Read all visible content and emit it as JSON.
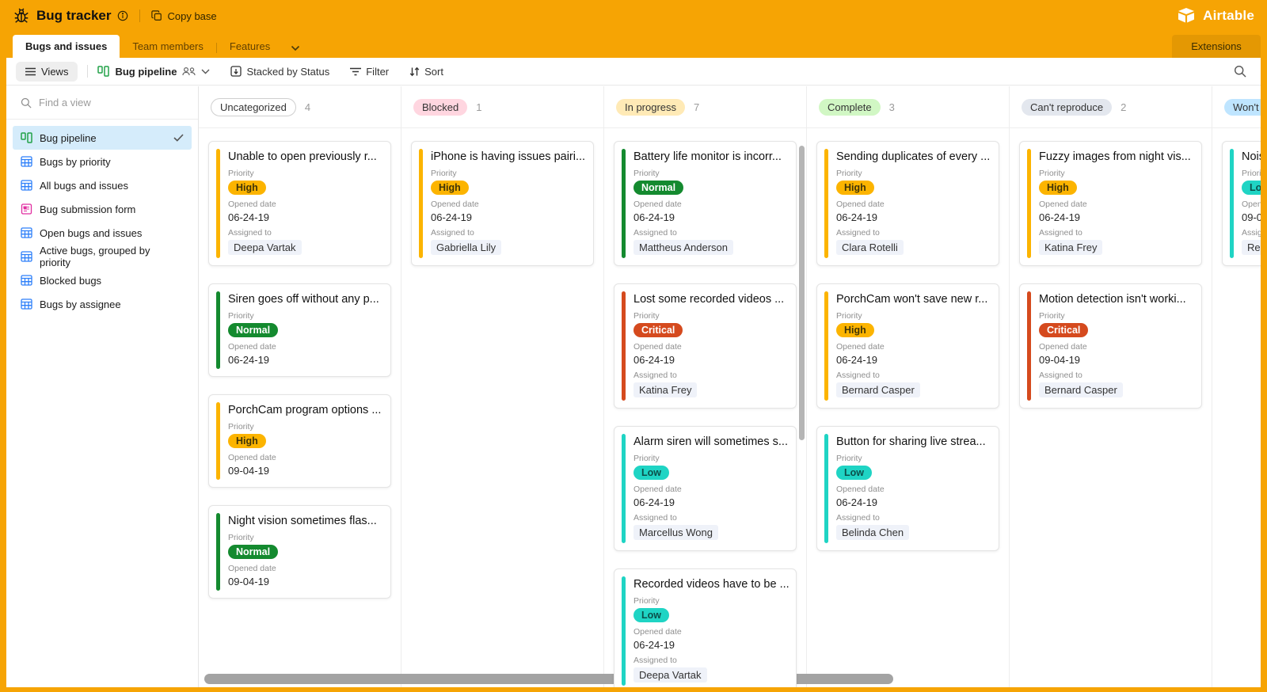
{
  "topbar": {
    "title": "Bug tracker",
    "copy_base_label": "Copy base",
    "brand": "Airtable"
  },
  "tabs": [
    {
      "label": "Bugs and issues",
      "active": true
    },
    {
      "label": "Team members",
      "active": false
    },
    {
      "label": "Features",
      "active": false
    }
  ],
  "extensions_label": "Extensions",
  "toolbar": {
    "views_label": "Views",
    "view_name": "Bug pipeline",
    "stacked_label": "Stacked by Status",
    "filter_label": "Filter",
    "sort_label": "Sort"
  },
  "sidebar": {
    "search_placeholder": "Find a view",
    "items": [
      {
        "label": "Bug pipeline",
        "icon": "kanban-icon",
        "selected": true
      },
      {
        "label": "Bugs by priority",
        "icon": "grid-icon",
        "selected": false
      },
      {
        "label": "All bugs and issues",
        "icon": "grid-icon",
        "selected": false
      },
      {
        "label": "Bug submission form",
        "icon": "form-icon",
        "selected": false
      },
      {
        "label": "Open bugs and issues",
        "icon": "grid-icon",
        "selected": false
      },
      {
        "label": "Active bugs, grouped by priority",
        "icon": "grid-icon",
        "selected": false
      },
      {
        "label": "Blocked bugs",
        "icon": "grid-icon",
        "selected": false
      },
      {
        "label": "Bugs by assignee",
        "icon": "grid-icon",
        "selected": false
      }
    ]
  },
  "labels": {
    "priority": "Priority",
    "opened": "Opened date",
    "assigned": "Assigned to"
  },
  "priorities": {
    "High": {
      "bg": "#fcb400",
      "fg": "#3f3408"
    },
    "Normal": {
      "bg": "#148a2f",
      "fg": "#ffffff"
    },
    "Critical": {
      "bg": "#d54a1e",
      "fg": "#ffffff"
    },
    "Low": {
      "bg": "#1fd4c4",
      "fg": "#0c4f4a"
    }
  },
  "board": {
    "columns": [
      {
        "name": "Uncategorized",
        "count": "4",
        "pill": {
          "bg": "#ffffff",
          "fg": "#333333",
          "border": "#cfcfcf"
        },
        "cards": [
          {
            "title": "Unable to open previously r...",
            "priority": "High",
            "date": "06-24-19",
            "assignee": "Deepa Vartak"
          },
          {
            "title": "Siren goes off without any p...",
            "priority": "Normal",
            "date": "06-24-19"
          },
          {
            "title": "PorchCam program options ...",
            "priority": "High",
            "date": "09-04-19"
          },
          {
            "title": "Night vision sometimes flas...",
            "priority": "Normal",
            "date": "09-04-19"
          }
        ]
      },
      {
        "name": "Blocked",
        "count": "1",
        "pill": {
          "bg": "#ffd6e0",
          "fg": "#333333"
        },
        "cards": [
          {
            "title": "iPhone is having issues pairi...",
            "priority": "High",
            "date": "06-24-19",
            "assignee": "Gabriella Lily"
          }
        ]
      },
      {
        "name": "In progress",
        "count": "7",
        "pill": {
          "bg": "#ffeab6",
          "fg": "#333333"
        },
        "has_vertical_scrollbar": true,
        "cards": [
          {
            "title": "Battery life monitor is incorr...",
            "priority": "Normal",
            "date": "06-24-19",
            "assignee": "Mattheus Anderson"
          },
          {
            "title": "Lost some recorded videos ...",
            "priority": "Critical",
            "date": "06-24-19",
            "assignee": "Katina Frey"
          },
          {
            "title": "Alarm siren will sometimes s...",
            "priority": "Low",
            "date": "06-24-19",
            "assignee": "Marcellus Wong"
          },
          {
            "title": "Recorded videos have to be ...",
            "priority": "Low",
            "date": "06-24-19",
            "assignee": "Deepa Vartak"
          }
        ]
      },
      {
        "name": "Complete",
        "count": "3",
        "pill": {
          "bg": "#d1f7c4",
          "fg": "#333333"
        },
        "cards": [
          {
            "title": "Sending duplicates of every ...",
            "priority": "High",
            "date": "06-24-19",
            "assignee": "Clara Rotelli"
          },
          {
            "title": "PorchCam won't save new r...",
            "priority": "High",
            "date": "06-24-19",
            "assignee": "Bernard Casper"
          },
          {
            "title": "Button for sharing live strea...",
            "priority": "Low",
            "date": "06-24-19",
            "assignee": "Belinda Chen"
          }
        ]
      },
      {
        "name": "Can't reproduce",
        "count": "2",
        "pill": {
          "bg": "#e3e7ee",
          "fg": "#333333"
        },
        "cards": [
          {
            "title": "Fuzzy images from night vis...",
            "priority": "High",
            "date": "06-24-19",
            "assignee": "Katina Frey"
          },
          {
            "title": "Motion detection isn't worki...",
            "priority": "Critical",
            "date": "09-04-19",
            "assignee": "Bernard Casper"
          }
        ]
      },
      {
        "name": "Won't f",
        "count": "",
        "pill": {
          "bg": "#bfe5ff",
          "fg": "#333333"
        },
        "cards": [
          {
            "title": "Nois",
            "priority": "Low",
            "date": "09-0",
            "assignee": "Reub"
          }
        ]
      }
    ]
  }
}
